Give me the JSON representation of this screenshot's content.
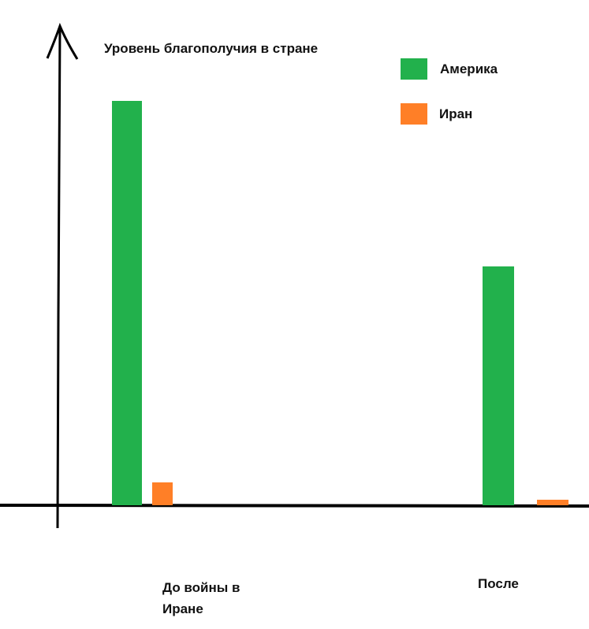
{
  "chart_data": {
    "type": "bar",
    "title": "Уровень благополучия в стране",
    "categories": [
      "До войны в Иране",
      "После"
    ],
    "series": [
      {
        "name": "Америка",
        "color": "#22b14c",
        "values": [
          513,
          303
        ]
      },
      {
        "name": "Иран",
        "color": "#ff7f27",
        "values": [
          29,
          7
        ]
      }
    ],
    "ylim": [
      0,
      600
    ]
  }
}
